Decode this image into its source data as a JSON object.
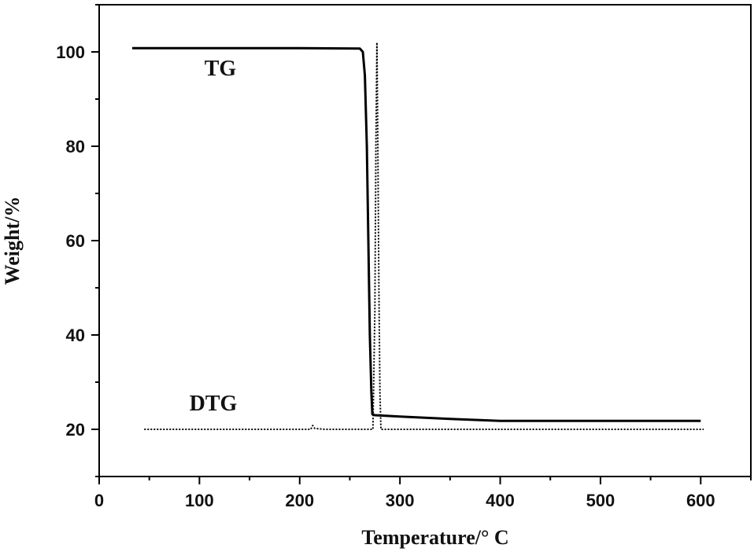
{
  "chart_data": {
    "type": "line",
    "title": "",
    "xlabel": "Temperature/° C",
    "ylabel": "Weight/%",
    "xlim": [
      0,
      650
    ],
    "ylim": [
      10,
      110
    ],
    "x_ticks": [
      0,
      100,
      200,
      300,
      400,
      500,
      600
    ],
    "y_ticks": [
      20,
      40,
      60,
      80,
      100
    ],
    "grid": false,
    "series": [
      {
        "name": "TG",
        "style": "solid",
        "color": "#000000",
        "points": [
          [
            33,
            100.8
          ],
          [
            100,
            100.8
          ],
          [
            200,
            100.8
          ],
          [
            260,
            100.7
          ],
          [
            263,
            100.0
          ],
          [
            265,
            95
          ],
          [
            267,
            80
          ],
          [
            268.5,
            60
          ],
          [
            270,
            40
          ],
          [
            271.5,
            28
          ],
          [
            272.5,
            23.2
          ],
          [
            275,
            23
          ],
          [
            300,
            22.7
          ],
          [
            350,
            22.2
          ],
          [
            400,
            21.8
          ],
          [
            500,
            21.8
          ],
          [
            600,
            21.8
          ]
        ]
      },
      {
        "name": "DTG",
        "style": "dotted",
        "color": "#000000",
        "points": [
          [
            45,
            20
          ],
          [
            100,
            20
          ],
          [
            200,
            20
          ],
          [
            211,
            20
          ],
          [
            213,
            20.8
          ],
          [
            215,
            20.2
          ],
          [
            220,
            20.1
          ],
          [
            225,
            20
          ],
          [
            270,
            20
          ],
          [
            273,
            20
          ],
          [
            275,
            45
          ],
          [
            276,
            80
          ],
          [
            277,
            102
          ],
          [
            278,
            80
          ],
          [
            279,
            50
          ],
          [
            280,
            28
          ],
          [
            281,
            20
          ],
          [
            300,
            20
          ],
          [
            400,
            20
          ],
          [
            500,
            20
          ],
          [
            603,
            20
          ]
        ]
      }
    ],
    "annotations": [
      {
        "text": "TG",
        "x": 105,
        "y": 95
      },
      {
        "text": "DTG",
        "x": 90,
        "y": 24
      }
    ]
  }
}
